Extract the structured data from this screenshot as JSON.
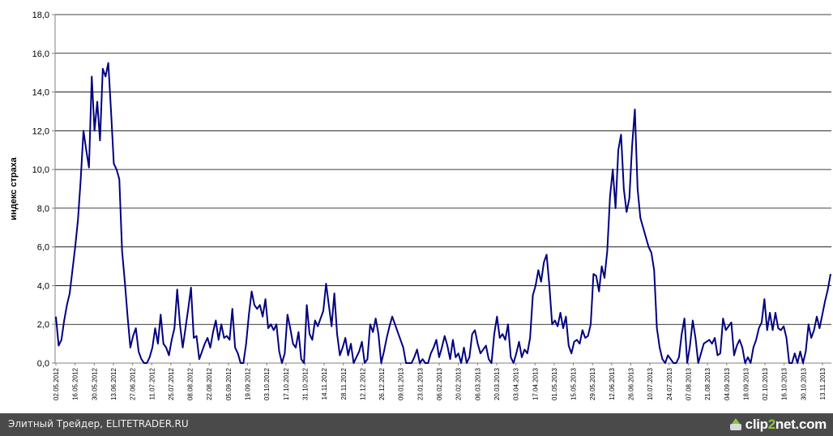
{
  "footer": {
    "caption": "Элитный Трейдер, ELITETRADER.RU",
    "brand_pre": "clip",
    "brand_accent": "2",
    "brand_post": "net.com"
  },
  "chart_data": {
    "type": "line",
    "title": "",
    "xlabel": "",
    "ylabel": "индекс страха",
    "ylim": [
      0,
      18
    ],
    "yticks": [
      "0,0",
      "2,0",
      "4,0",
      "6,0",
      "8,0",
      "10,0",
      "12,0",
      "14,0",
      "16,0",
      "18,0"
    ],
    "grid": "horizontal",
    "line_color": "#000080",
    "x_tick_labels": [
      "02.05.2012",
      "16.05.2012",
      "30.05.2012",
      "13.06.2012",
      "27.06.2012",
      "11.07.2012",
      "25.07.2012",
      "08.08.2012",
      "22.08.2012",
      "05.09.2012",
      "19.09.2012",
      "03.10.2012",
      "17.10.2012",
      "31.10.2012",
      "14.11.2012",
      "28.11.2012",
      "12.12.2012",
      "26.12.2012",
      "09.01.2013",
      "23.01.2013",
      "06.02.2013",
      "20.02.2013",
      "06.03.2013",
      "20.03.2013",
      "03.04.2013",
      "17.04.2013",
      "01.05.2013",
      "15.05.2013",
      "29.05.2013",
      "12.06.2013",
      "26.06.2013",
      "10.07.2013",
      "24.07.2013",
      "07.08.2013",
      "21.08.2013",
      "04.09.2013",
      "18.09.2013",
      "02.10.2013",
      "16.10.2013",
      "30.10.2013",
      "13.11.2013"
    ],
    "series": [
      {
        "values": [
          2.4,
          0.9,
          1.2,
          2.2,
          3.0,
          3.6,
          4.8,
          6.0,
          7.4,
          9.5,
          12.0,
          11.0,
          10.1,
          14.8,
          12.0,
          13.5,
          11.5,
          15.2,
          14.8,
          15.5,
          13.0,
          10.3,
          10.0,
          9.5,
          5.8,
          4.2,
          2.4,
          0.8,
          1.4,
          1.8,
          0.6,
          0.2,
          0.0,
          0.0,
          0.3,
          0.8,
          1.8,
          1.0,
          2.5,
          1.0,
          0.8,
          0.4,
          1.2,
          1.8,
          3.8,
          2.0,
          0.8,
          1.8,
          2.8,
          3.9,
          1.3,
          1.4,
          0.2,
          0.6,
          1.0,
          1.3,
          0.8,
          1.6,
          2.2,
          1.2,
          2.0,
          1.3,
          1.4,
          1.2,
          2.8,
          0.8,
          0.5,
          0.0,
          0.0,
          1.0,
          2.5,
          3.7,
          3.0,
          2.8,
          3.0,
          2.4,
          3.3,
          1.8,
          2.0,
          1.7,
          2.0,
          0.6,
          0.0,
          0.5,
          2.5,
          1.8,
          1.0,
          0.8,
          1.6,
          0.2,
          0.0,
          3.0,
          1.5,
          1.2,
          2.2,
          1.9,
          2.3,
          2.7,
          4.1,
          3.0,
          1.9,
          3.6,
          1.5,
          0.4,
          0.8,
          1.3,
          0.4,
          1.0,
          0.0,
          0.3,
          0.6,
          1.1,
          0.0,
          0.2,
          2.0,
          1.6,
          2.3,
          1.5,
          0.0,
          0.6,
          1.3,
          1.9,
          2.4,
          2.0,
          1.6,
          1.2,
          0.8,
          0.0,
          0.0,
          0.0,
          0.3,
          0.7,
          0.0,
          0.2,
          0.0,
          0.0,
          0.5,
          0.8,
          1.2,
          0.3,
          0.8,
          1.4,
          0.9,
          0.2,
          1.2,
          0.3,
          0.5,
          0.0,
          0.8,
          0.0,
          0.3,
          1.5,
          1.7,
          1.0,
          0.5,
          0.7,
          0.9,
          0.2,
          0.0,
          1.5,
          2.4,
          1.3,
          1.5,
          1.2,
          2.0,
          0.3,
          0.0,
          0.5,
          1.1,
          0.3,
          0.7,
          0.5,
          1.3,
          3.5,
          4.0,
          4.8,
          4.2,
          5.2,
          5.6,
          4.0,
          2.0,
          2.2,
          1.9,
          2.6,
          1.8,
          2.4,
          0.9,
          0.5,
          1.1,
          1.2,
          1.0,
          1.7,
          1.3,
          1.4,
          2.0,
          4.6,
          4.5,
          3.7,
          5.0,
          4.4,
          5.8,
          8.6,
          10.0,
          8.0,
          11.0,
          11.8,
          9.0,
          7.8,
          8.5,
          11.2,
          13.1,
          9.0,
          7.5,
          7.0,
          6.5,
          6.0,
          5.7,
          4.8,
          1.8,
          0.8,
          0.2,
          0.0,
          0.4,
          0.2,
          0.0,
          0.0,
          0.3,
          1.5,
          2.3,
          0.0,
          0.9,
          2.2,
          1.3,
          0.0,
          0.5,
          1.0,
          1.1,
          1.2,
          1.0,
          1.3,
          0.4,
          0.5,
          2.3,
          1.7,
          1.9,
          2.1,
          0.4,
          0.9,
          1.2,
          0.8,
          0.0,
          0.3,
          0.0,
          0.8,
          1.2,
          1.8,
          2.1,
          3.3,
          1.7,
          2.6,
          1.7,
          2.6,
          1.8,
          1.7,
          1.9,
          1.3,
          0.0,
          0.0,
          0.5,
          0.0,
          0.6,
          0.0,
          0.6,
          2.0,
          1.3,
          1.7,
          2.4,
          1.8,
          2.5,
          3.2,
          3.8,
          4.6
        ]
      }
    ]
  }
}
